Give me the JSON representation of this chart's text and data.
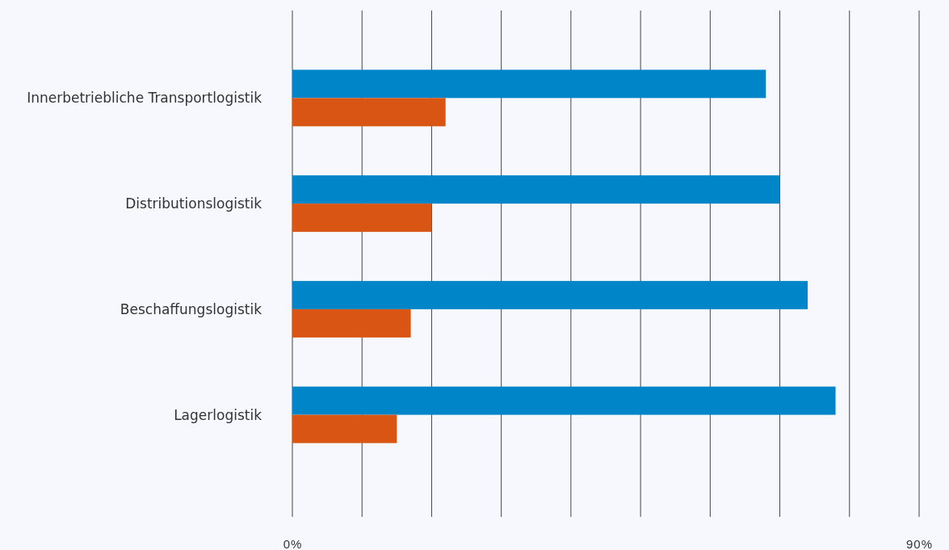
{
  "chart_data": {
    "type": "bar",
    "orientation": "horizontal",
    "categories": [
      "Innerbetriebliche Transportlogistik",
      "Distributionslogistik",
      "Beschaffungslogistik",
      "Lagerlogistik"
    ],
    "series": [
      {
        "color": "#0085c8",
        "values": [
          68,
          70,
          74,
          78
        ]
      },
      {
        "color": "#d95514",
        "values": [
          22,
          20,
          17,
          15
        ]
      }
    ],
    "xlim": [
      0,
      90
    ],
    "xticks": [
      {
        "value": 0,
        "label": "0%"
      },
      {
        "value": 10,
        "label": null
      },
      {
        "value": 20,
        "label": null
      },
      {
        "value": 30,
        "label": null
      },
      {
        "value": 40,
        "label": null
      },
      {
        "value": 50,
        "label": null
      },
      {
        "value": 60,
        "label": null
      },
      {
        "value": 70,
        "label": null
      },
      {
        "value": 80,
        "label": null
      },
      {
        "value": 90,
        "label": "90%"
      }
    ],
    "grid": "x"
  }
}
